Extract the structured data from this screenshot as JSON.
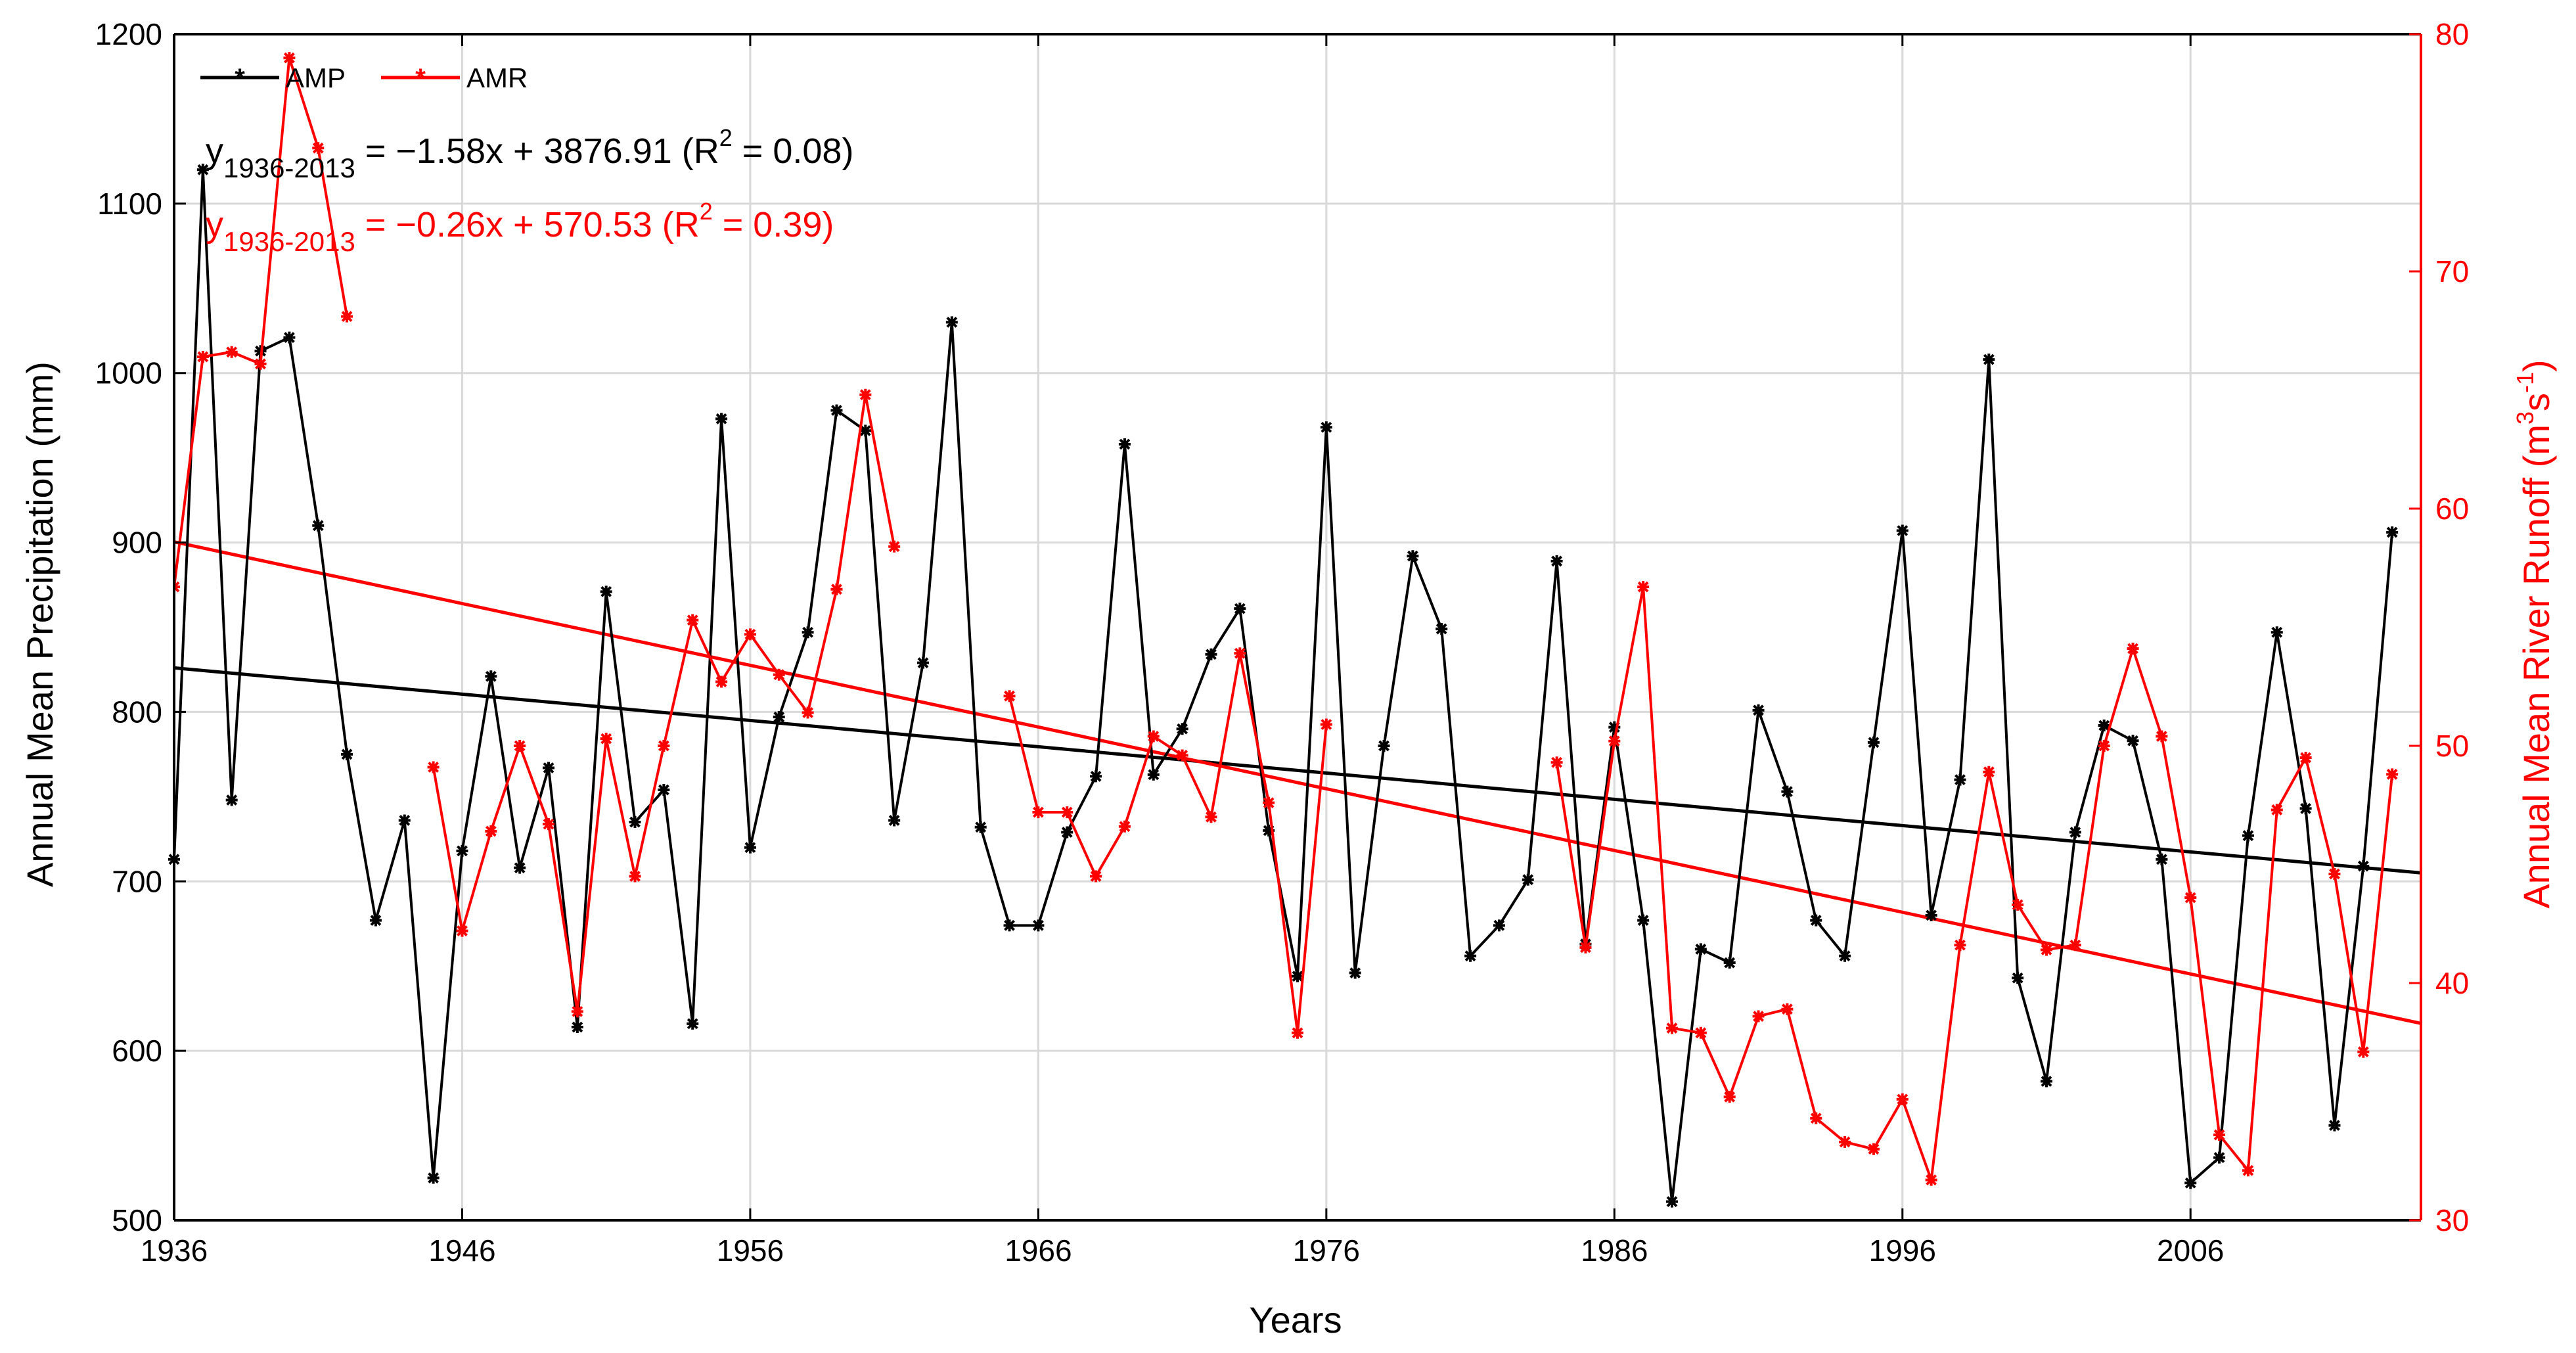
{
  "chart_data": {
    "type": "line",
    "xlabel": "Years",
    "ylabel_left": "Annual Mean Precipitation (mm)",
    "ylabel_right": {
      "prefix": "Annual Mean River Runoff (m",
      "sup1": "3",
      "mid": "s",
      "sup2": "-1",
      "suffix": ")"
    },
    "xlim": [
      1936,
      2014
    ],
    "ylim_left": [
      500,
      1200
    ],
    "ylim_right": [
      30,
      80
    ],
    "x_ticks": [
      1936,
      1946,
      1956,
      1966,
      1976,
      1986,
      1996,
      2006
    ],
    "y_ticks_left": [
      500,
      600,
      700,
      800,
      900,
      1000,
      1100,
      1200
    ],
    "y_ticks_right": [
      30,
      40,
      50,
      60,
      70,
      80
    ],
    "grid": true,
    "legend": {
      "position": "top-left",
      "entries": [
        "AMP",
        "AMR"
      ]
    },
    "colors": {
      "amp": "#000000",
      "amr": "#ff0000"
    },
    "series": [
      {
        "name": "AMP",
        "axis": "left",
        "color": "#000000",
        "x": [
          1936,
          1937,
          1938,
          1939,
          1940,
          1941,
          1942,
          1943,
          1944,
          1945,
          1946,
          1947,
          1948,
          1949,
          1950,
          1951,
          1952,
          1953,
          1954,
          1955,
          1956,
          1957,
          1958,
          1959,
          1960,
          1961,
          1962,
          1963,
          1964,
          1965,
          1966,
          1967,
          1968,
          1969,
          1970,
          1971,
          1972,
          1973,
          1974,
          1975,
          1976,
          1977,
          1978,
          1979,
          1980,
          1981,
          1982,
          1983,
          1984,
          1985,
          1986,
          1987,
          1988,
          1989,
          1990,
          1991,
          1992,
          1993,
          1994,
          1995,
          1996,
          1997,
          1998,
          1999,
          2000,
          2001,
          2002,
          2003,
          2004,
          2005,
          2006,
          2007,
          2008,
          2009,
          2010,
          2011,
          2012,
          2013
        ],
        "values": [
          713,
          1120,
          748,
          1013,
          1021,
          910,
          775,
          677,
          736,
          525,
          718,
          821,
          708,
          767,
          614,
          871,
          735,
          754,
          616,
          973,
          720,
          797,
          847,
          978,
          966,
          736,
          829,
          1030,
          732,
          674,
          674,
          729,
          762,
          958,
          763,
          790,
          834,
          861,
          730,
          644,
          968,
          646,
          780,
          892,
          849,
          656,
          674,
          701,
          889,
          663,
          791,
          677,
          511,
          660,
          652,
          801,
          753,
          677,
          656,
          782,
          907,
          680,
          760,
          1008,
          643,
          582,
          729,
          792,
          783,
          713,
          522,
          537,
          727,
          847,
          743,
          556,
          709,
          906
        ]
      },
      {
        "name": "AMR",
        "axis": "right",
        "color": "#ff0000",
        "segments": [
          {
            "x": [
              1936,
              1937,
              1938,
              1939,
              1940,
              1941,
              1942
            ],
            "values": [
              56.7,
              66.4,
              66.6,
              66.1,
              79.0,
              75.2,
              68.1
            ]
          },
          {
            "x": [
              1945,
              1946,
              1947,
              1948,
              1949,
              1950,
              1951,
              1952,
              1953,
              1954,
              1955,
              1956,
              1957,
              1958,
              1959,
              1960,
              1961
            ],
            "values": [
              49.1,
              42.2,
              46.4,
              50.0,
              46.7,
              38.8,
              50.3,
              44.5,
              50.0,
              55.3,
              52.7,
              54.7,
              53.0,
              51.4,
              56.6,
              64.8,
              58.4
            ]
          },
          {
            "x": [
              1965,
              1966,
              1967,
              1968,
              1969,
              1970,
              1971,
              1972,
              1973,
              1974,
              1975,
              1976
            ],
            "values": [
              52.1,
              47.2,
              47.2,
              44.5,
              46.6,
              50.4,
              49.6,
              47.0,
              53.9,
              47.6,
              37.9,
              50.9
            ]
          },
          {
            "x": [
              1984,
              1985,
              1986,
              1987,
              1988,
              1989,
              1990,
              1991,
              1992,
              1993,
              1994,
              1995,
              1996,
              1997,
              1998,
              1999,
              2000,
              2001,
              2002,
              2003,
              2004,
              2005,
              2006,
              2007,
              2008,
              2009,
              2010,
              2011,
              2012,
              2013
            ],
            "values": [
              49.3,
              41.5,
              50.2,
              56.7,
              38.1,
              37.9,
              35.2,
              38.6,
              38.9,
              34.3,
              33.3,
              33.0,
              35.1,
              31.7,
              41.6,
              48.9,
              43.3,
              41.4,
              41.6,
              50.0,
              54.1,
              50.4,
              43.6,
              33.6,
              32.1,
              47.3,
              49.5,
              44.6,
              37.1,
              48.8
            ]
          }
        ]
      }
    ],
    "trendlines": [
      {
        "series": "AMP",
        "axis": "left",
        "x": [
          1936,
          2014
        ],
        "values": [
          826,
          705
        ],
        "color": "#000000"
      },
      {
        "series": "AMR",
        "axis": "right",
        "x": [
          1936,
          2014
        ],
        "values": [
          58.6,
          38.3
        ],
        "color": "#ff0000"
      }
    ],
    "annotations": [
      {
        "series": "AMP",
        "y": "y",
        "sub": "1936-2013",
        "body": " = −1.58x + 3876.91 (R",
        "sup": "2",
        "tail": " = 0.08)",
        "color": "#000000"
      },
      {
        "series": "AMR",
        "y": "y",
        "sub": "1936-2013",
        "body": " = −0.26x + 570.53 (R",
        "sup": "2",
        "tail": " = 0.39)",
        "color": "#ff0000"
      }
    ]
  }
}
